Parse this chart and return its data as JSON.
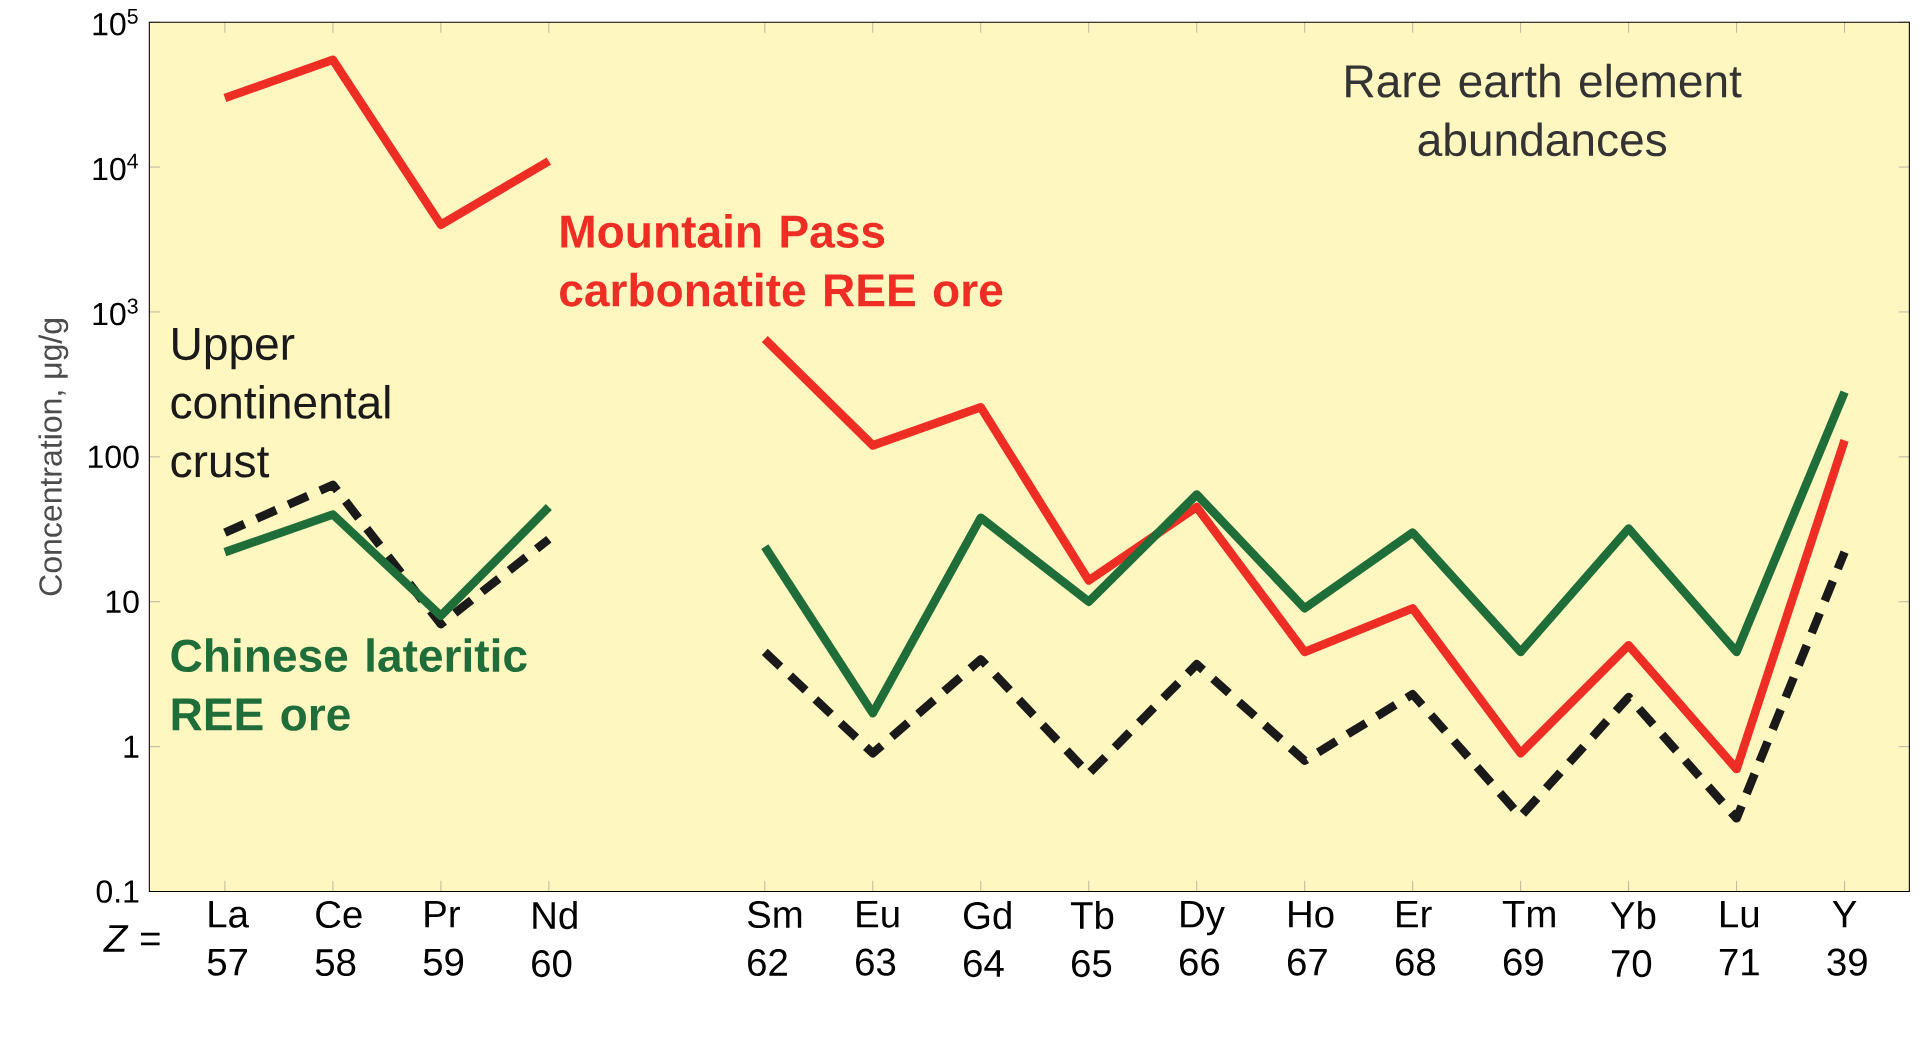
{
  "chart_data": {
    "type": "line",
    "title": "Rare earth element abundances",
    "ylabel": "Concentration, μg/g",
    "categories": [
      "La 57",
      "Ce 58",
      "Pr 59",
      "Nd 60",
      null,
      "Sm 62",
      "Eu 63",
      "Gd 64",
      "Tb 65",
      "Dy 66",
      "Ho 67",
      "Er 68",
      "Tm 69",
      "Yb 70",
      "Lu 71",
      "Y 39"
    ],
    "annotations": [
      "*Z* ="
    ],
    "log": "y",
    "ylim": [
      0.1,
      100000
    ],
    "yticks": [
      0.1,
      1,
      10,
      100,
      {
        "value": 1000,
        "label": "10$^{3}$"
      },
      {
        "value": 10000,
        "label": "10$^{4}$"
      },
      {
        "value": 100000,
        "label": "10$^{5}$"
      }
    ],
    "grid": false,
    "legend": false,
    "marker": "none",
    "series": [
      {
        "name": "Mountain Pass carbonatite REE ore",
        "color": "#ee2e24",
        "line_style": "solid",
        "values": [
          30000,
          55000,
          4000,
          11000,
          null,
          650,
          120,
          220,
          14,
          45,
          4.5,
          9,
          0.9,
          5,
          0.7,
          130
        ]
      },
      {
        "name": "Upper continental crust",
        "color": "#1a1a1a",
        "line_style": "dashed",
        "values": [
          30,
          64,
          7,
          27,
          null,
          4.5,
          0.9,
          4,
          0.65,
          3.7,
          0.8,
          2.3,
          0.33,
          2.2,
          0.32,
          22
        ]
      },
      {
        "name": "Chinese lateritic REE ore",
        "color": "#1f6e3a",
        "line_style": "solid",
        "values": [
          22,
          40,
          8,
          45,
          null,
          24,
          1.7,
          38,
          10,
          55,
          9,
          30,
          4.5,
          32,
          4.5,
          280
        ]
      }
    ]
  }
}
